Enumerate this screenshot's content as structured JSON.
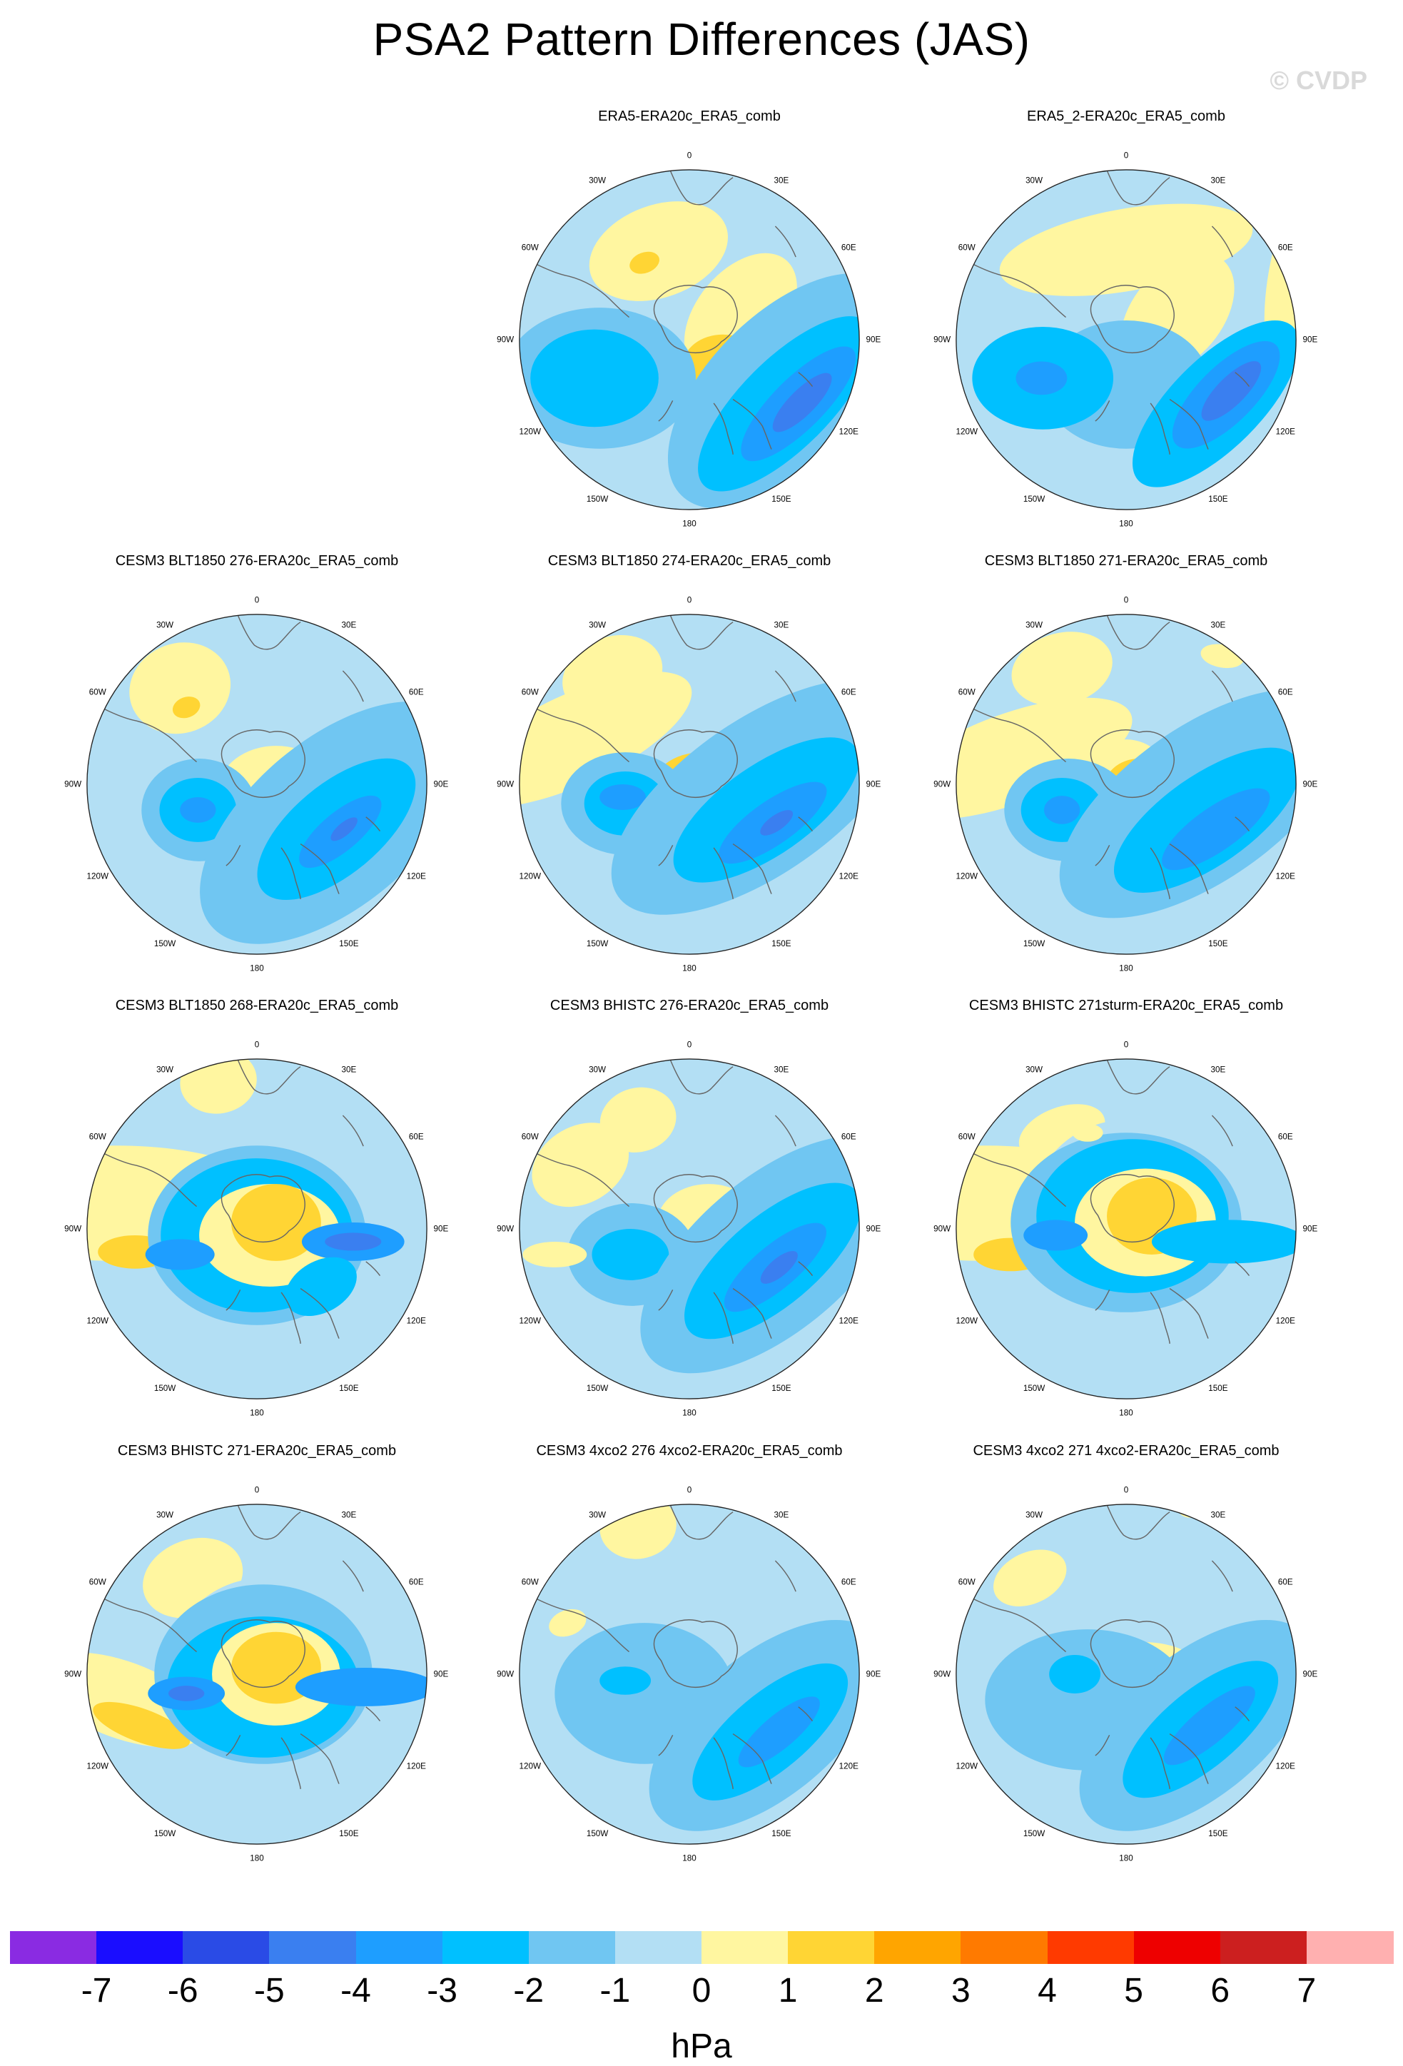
{
  "title": "PSA2 Pattern Differences (JAS)",
  "watermark": "© CVDP",
  "colors": {
    "m7": "#8a2be2",
    "m6": "#1a0dff",
    "m5": "#2a4be6",
    "m4": "#3a7ff0",
    "m3": "#1e9eff",
    "m2": "#00c0ff",
    "m1": "#70c6f2",
    "n0": "#b3dff4",
    "p0": "#fff6a0",
    "p1": "#ffd534",
    "p2": "#ffa500",
    "p3": "#ff7a00",
    "p4": "#ff3a00",
    "p5": "#ee0000",
    "p6": "#cc1f1f",
    "p7": "#ffb0b0",
    "land": "#666666",
    "rim": "#222222"
  },
  "lon_labels": [
    "0",
    "30E",
    "60E",
    "90E",
    "120E",
    "150E",
    "180",
    "150W",
    "120W",
    "90W",
    "60W",
    "30W"
  ],
  "panels": [
    {
      "title": "ERA5-ERA20c_ERA5_comb",
      "features": [
        [
          "p0",
          -48,
          -138,
          62,
          0,
          112,
          72,
          -20
        ],
        [
          "p1",
          -70,
          -120,
          16,
          0,
          24,
          16,
          -20
        ],
        [
          "p0",
          80,
          -40,
          130,
          0,
          110,
          68,
          -50
        ],
        [
          "p1",
          52,
          40,
          76,
          0,
          62,
          48,
          0
        ],
        [
          "p2",
          44,
          54,
          34,
          0,
          24,
          20,
          0
        ],
        [
          "m1",
          150,
          80,
          170,
          0,
          230,
          120,
          -45
        ],
        [
          "m2",
          150,
          100,
          130,
          0,
          180,
          70,
          -45
        ],
        [
          "m3",
          170,
          100,
          84,
          0,
          120,
          40,
          -45
        ],
        [
          "m4",
          176,
          98,
          36,
          0,
          62,
          20,
          -45
        ],
        [
          "m1",
          -140,
          60,
          120,
          0,
          150,
          110,
          0
        ],
        [
          "m2",
          -148,
          60,
          84,
          0,
          100,
          76,
          0
        ]
      ]
    },
    {
      "title": "ERA5_2-ERA20c_ERA5_comb",
      "features": [
        [
          "p0",
          0,
          -140,
          210,
          0,
          200,
          64,
          -10
        ],
        [
          "p0",
          80,
          -40,
          130,
          0,
          110,
          70,
          -50
        ],
        [
          "p1",
          60,
          50,
          70,
          0,
          60,
          46,
          0
        ],
        [
          "p2",
          40,
          64,
          26,
          0,
          24,
          18,
          0
        ],
        [
          "p0",
          262,
          -100,
          12,
          0,
          40,
          140,
          10
        ],
        [
          "m1",
          0,
          70,
          240,
          0,
          130,
          100,
          0
        ],
        [
          "m2",
          -130,
          60,
          90,
          0,
          110,
          80,
          0
        ],
        [
          "m3",
          -132,
          60,
          34,
          0,
          40,
          26,
          0
        ],
        [
          "m2",
          140,
          100,
          140,
          0,
          170,
          70,
          -45
        ],
        [
          "m3",
          156,
          86,
          84,
          0,
          110,
          44,
          -45
        ],
        [
          "m4",
          164,
          80,
          36,
          0,
          62,
          22,
          -45
        ]
      ]
    },
    {
      "title": "CESM3 BLT1850 276-ERA20c_ERA5_comb",
      "features": [
        [
          "p0",
          -120,
          -150,
          120,
          0,
          80,
          70,
          -20
        ],
        [
          "p1",
          -110,
          -120,
          32,
          0,
          22,
          16,
          -20
        ],
        [
          "p0",
          30,
          10,
          80,
          0,
          90,
          70,
          0
        ],
        [
          "p1",
          28,
          48,
          34,
          0,
          40,
          28,
          0
        ],
        [
          "m1",
          -90,
          40,
          84,
          0,
          90,
          80,
          0
        ],
        [
          "m2",
          -92,
          40,
          50,
          0,
          60,
          50,
          0
        ],
        [
          "m3",
          -92,
          40,
          22,
          0,
          28,
          20,
          0
        ],
        [
          "m1",
          120,
          60,
          160,
          0,
          250,
          130,
          -40
        ],
        [
          "m2",
          124,
          70,
          100,
          0,
          150,
          70,
          -40
        ],
        [
          "m3",
          130,
          74,
          48,
          0,
          80,
          30,
          -40
        ],
        [
          "m4",
          136,
          70,
          16,
          0,
          26,
          10,
          -40
        ]
      ]
    },
    {
      "title": "CESM3 BLT1850 274-ERA20c_ERA5_comb",
      "features": [
        [
          "p0",
          -180,
          -70,
          160,
          0,
          200,
          70,
          -25
        ],
        [
          "p0",
          -120,
          -170,
          120,
          0,
          80,
          60,
          -20
        ],
        [
          "p1",
          20,
          10,
          60,
          0,
          80,
          60,
          0
        ],
        [
          "m1",
          -100,
          30,
          84,
          0,
          100,
          80,
          0
        ],
        [
          "m2",
          -100,
          30,
          52,
          0,
          64,
          50,
          0
        ],
        [
          "m3",
          -104,
          20,
          22,
          0,
          36,
          20,
          0
        ],
        [
          "m1",
          110,
          20,
          170,
          0,
          270,
          120,
          -35
        ],
        [
          "m2",
          120,
          40,
          100,
          0,
          170,
          70,
          -35
        ],
        [
          "m3",
          130,
          60,
          50,
          0,
          100,
          34,
          -35
        ],
        [
          "m4",
          136,
          60,
          18,
          0,
          30,
          12,
          -35
        ]
      ]
    },
    {
      "title": "CESM3 BLT1850 271-ERA20c_ERA5_comb",
      "features": [
        [
          "p0",
          -180,
          -40,
          150,
          0,
          200,
          70,
          -20
        ],
        [
          "p0",
          -100,
          -180,
          110,
          0,
          80,
          56,
          -15
        ],
        [
          "p0",
          150,
          -200,
          40,
          0,
          34,
          18,
          10
        ],
        [
          "p0",
          0,
          0,
          50,
          0,
          70,
          70,
          0
        ],
        [
          "p1",
          20,
          10,
          42,
          0,
          56,
          50,
          0
        ],
        [
          "p2",
          30,
          -10,
          14,
          0,
          14,
          12,
          0
        ],
        [
          "m1",
          -90,
          40,
          84,
          0,
          100,
          80,
          0
        ],
        [
          "m2",
          -100,
          40,
          54,
          0,
          64,
          50,
          0
        ],
        [
          "m3",
          -100,
          40,
          22,
          0,
          28,
          22,
          0
        ],
        [
          "m1",
          120,
          30,
          170,
          0,
          260,
          120,
          -35
        ],
        [
          "m2",
          126,
          56,
          100,
          0,
          170,
          70,
          -35
        ],
        [
          "m3",
          140,
          70,
          56,
          0,
          100,
          34,
          -35
        ]
      ]
    },
    {
      "title": "CESM3 BLT1850 268-ERA20c_ERA5_comb",
      "features": [
        [
          "p0",
          -220,
          -40,
          110,
          0,
          260,
          90,
          0
        ],
        [
          "p0",
          -60,
          -230,
          90,
          0,
          60,
          50,
          -10
        ],
        [
          "p1",
          -190,
          36,
          26,
          0,
          58,
          26,
          0
        ],
        [
          "n0",
          0,
          0,
          190,
          0,
          120,
          130,
          0
        ],
        [
          "m1",
          0,
          10,
          210,
          0,
          170,
          140,
          0
        ],
        [
          "m2",
          0,
          10,
          190,
          0,
          150,
          120,
          0
        ],
        [
          "p0",
          20,
          10,
          60,
          0,
          110,
          80,
          0
        ],
        [
          "p1",
          30,
          -10,
          46,
          0,
          70,
          60,
          0
        ],
        [
          "m3",
          -120,
          40,
          30,
          0,
          54,
          24,
          0
        ],
        [
          "m3",
          150,
          20,
          34,
          0,
          80,
          30,
          0
        ],
        [
          "m4",
          150,
          20,
          16,
          0,
          44,
          14,
          0
        ],
        [
          "m2",
          100,
          90,
          120,
          0,
          60,
          40,
          -30
        ]
      ]
    },
    {
      "title": "CESM3 BHISTC 276-ERA20c_ERA5_comb",
      "features": [
        [
          "p0",
          -170,
          -100,
          120,
          0,
          80,
          60,
          -30
        ],
        [
          "p0",
          -80,
          -170,
          90,
          0,
          60,
          50,
          -15
        ],
        [
          "p1",
          20,
          0,
          26,
          0,
          40,
          40,
          0
        ],
        [
          "p0",
          30,
          -10,
          60,
          0,
          80,
          60,
          0
        ],
        [
          "m1",
          -90,
          40,
          84,
          0,
          100,
          80,
          0
        ],
        [
          "m2",
          -92,
          40,
          40,
          0,
          60,
          40,
          0
        ],
        [
          "m1",
          130,
          40,
          160,
          0,
          250,
          120,
          -40
        ],
        [
          "m2",
          130,
          50,
          100,
          0,
          170,
          70,
          -40
        ],
        [
          "m3",
          134,
          60,
          54,
          0,
          100,
          34,
          -40
        ],
        [
          "m4",
          140,
          60,
          20,
          0,
          36,
          14,
          -40
        ],
        [
          "p0",
          -210,
          40,
          30,
          0,
          50,
          20,
          0
        ]
      ]
    },
    {
      "title": "CESM3 BHISTC 271sturm-ERA20c_ERA5_comb",
      "features": [
        [
          "p0",
          -220,
          -40,
          120,
          0,
          260,
          90,
          0
        ],
        [
          "p0",
          -100,
          -150,
          80,
          0,
          70,
          40,
          -20
        ],
        [
          "p1",
          -180,
          40,
          30,
          0,
          58,
          26,
          0
        ],
        [
          "n0",
          0,
          -20,
          180,
          0,
          150,
          150,
          0
        ],
        [
          "m1",
          0,
          -10,
          220,
          0,
          180,
          140,
          0
        ],
        [
          "m2",
          10,
          -20,
          180,
          0,
          150,
          120,
          0
        ],
        [
          "p0",
          30,
          -10,
          70,
          0,
          110,
          84,
          0
        ],
        [
          "p1",
          40,
          -20,
          50,
          0,
          70,
          60,
          0
        ],
        [
          "m3",
          -110,
          10,
          30,
          0,
          50,
          24,
          0
        ],
        [
          "m2",
          160,
          20,
          40,
          0,
          120,
          34,
          0
        ],
        [
          "p0",
          -60,
          -150,
          30,
          0,
          24,
          14,
          0
        ]
      ]
    },
    {
      "title": "CESM3 BHISTC 271-ERA20c_ERA5_comb",
      "features": [
        [
          "p0",
          -210,
          40,
          100,
          0,
          140,
          60,
          20
        ],
        [
          "p0",
          -100,
          -150,
          100,
          0,
          80,
          60,
          -20
        ],
        [
          "p1",
          -180,
          80,
          30,
          0,
          80,
          26,
          20
        ],
        [
          "n0",
          10,
          0,
          190,
          0,
          150,
          150,
          0
        ],
        [
          "m1",
          10,
          0,
          210,
          0,
          170,
          140,
          0
        ],
        [
          "m2",
          10,
          20,
          170,
          0,
          150,
          110,
          0
        ],
        [
          "p0",
          30,
          0,
          60,
          0,
          100,
          80,
          0
        ],
        [
          "p1",
          30,
          -10,
          40,
          0,
          70,
          56,
          0
        ],
        [
          "m3",
          -110,
          30,
          34,
          0,
          60,
          26,
          0
        ],
        [
          "m4",
          -110,
          30,
          14,
          0,
          28,
          12,
          0
        ],
        [
          "m3",
          170,
          20,
          40,
          0,
          110,
          30,
          0
        ]
      ]
    },
    {
      "title": "CESM3 4xco2 276 4xco2-ERA20c_ERA5_comb",
      "features": [
        [
          "p0",
          -80,
          -230,
          90,
          0,
          60,
          50,
          -10
        ],
        [
          "p0",
          -190,
          -80,
          80,
          0,
          30,
          20,
          -20
        ],
        [
          "p0",
          30,
          50,
          70,
          0,
          100,
          66,
          0
        ],
        [
          "p1",
          20,
          80,
          34,
          0,
          70,
          40,
          0
        ],
        [
          "m1",
          -70,
          30,
          190,
          0,
          140,
          110,
          0
        ],
        [
          "m2",
          -100,
          10,
          28,
          0,
          40,
          22,
          0
        ],
        [
          "m1",
          120,
          80,
          170,
          0,
          220,
          110,
          -40
        ],
        [
          "m2",
          126,
          90,
          100,
          0,
          150,
          60,
          -40
        ],
        [
          "m3",
          140,
          90,
          40,
          0,
          80,
          26,
          -40
        ]
      ]
    },
    {
      "title": "CESM3 4xco2 271 4xco2-ERA20c_ERA5_comb",
      "features": [
        [
          "p0",
          -150,
          -150,
          90,
          0,
          60,
          40,
          -25
        ],
        [
          "p0",
          30,
          30,
          70,
          0,
          110,
          80,
          0
        ],
        [
          "p1",
          30,
          80,
          26,
          0,
          24,
          22,
          0
        ],
        [
          "m1",
          -60,
          40,
          170,
          0,
          160,
          110,
          0
        ],
        [
          "m2",
          -80,
          0,
          36,
          0,
          40,
          30,
          0
        ],
        [
          "m1",
          110,
          80,
          170,
          0,
          220,
          110,
          -40
        ],
        [
          "m2",
          116,
          86,
          100,
          0,
          150,
          60,
          -40
        ],
        [
          "m3",
          130,
          80,
          44,
          0,
          90,
          28,
          -40
        ],
        [
          "p0",
          100,
          -260,
          30,
          0,
          20,
          16,
          0
        ]
      ]
    }
  ],
  "colorbar": {
    "order": [
      "m7",
      "m6",
      "m5",
      "m4",
      "m3",
      "m2",
      "m1",
      "n0",
      "p0",
      "p1",
      "p2",
      "p3",
      "p4",
      "p5",
      "p6",
      "p7"
    ],
    "ticks": [
      "-7",
      "-6",
      "-5",
      "-4",
      "-3",
      "-2",
      "-1",
      "0",
      "1",
      "2",
      "3",
      "4",
      "5",
      "6",
      "7"
    ],
    "units": "hPa"
  }
}
